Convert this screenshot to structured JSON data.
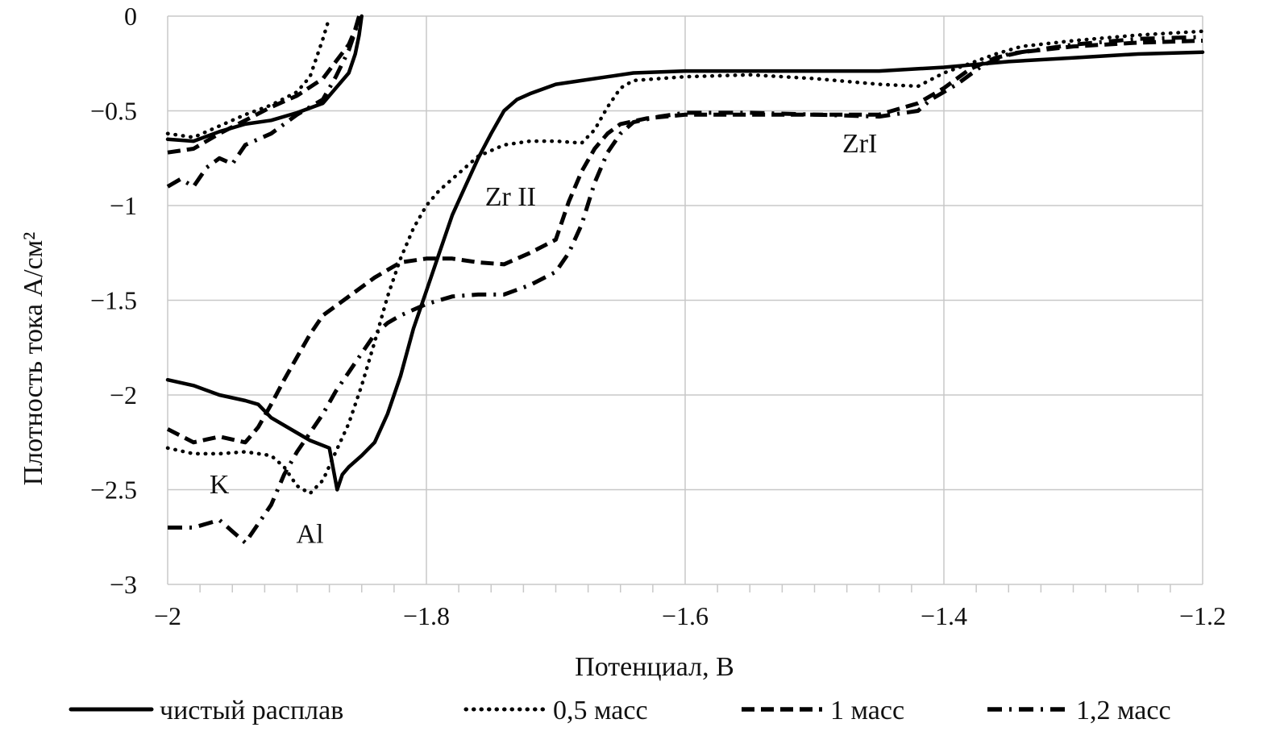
{
  "chart_data": {
    "type": "line",
    "title": "",
    "xlabel": "Потенциал, В",
    "ylabel": "Плотность тока А/см²",
    "xlim": [
      -2.0,
      -1.2
    ],
    "ylim": [
      -3,
      0
    ],
    "x_ticks": [
      -2.0,
      -1.8,
      -1.6,
      -1.4,
      -1.2
    ],
    "x_tick_labels": [
      "−2",
      "−1.8",
      "−1.6",
      "−1.4",
      "−1.2"
    ],
    "y_ticks": [
      0,
      -0.5,
      -1,
      -1.5,
      -2,
      -2.5,
      -3
    ],
    "y_tick_labels": [
      "0",
      "−0.5",
      "−1",
      "−1.5",
      "−2",
      "−2.5",
      "−3"
    ],
    "grid": true,
    "legend_position": "bottom",
    "annotations": [
      {
        "text": "K",
        "x": -1.96,
        "y": -2.52
      },
      {
        "text": "Al",
        "x": -1.89,
        "y": -2.78
      },
      {
        "text": "Zr II",
        "x": -1.735,
        "y": -1.0
      },
      {
        "text": "ZrI",
        "x": -1.465,
        "y": -0.72
      }
    ],
    "series": [
      {
        "name": "чистый расплав",
        "style": "solid",
        "segments": [
          [
            [
              -2.0,
              -0.65
            ],
            [
              -1.98,
              -0.66
            ],
            [
              -1.96,
              -0.61
            ],
            [
              -1.94,
              -0.57
            ],
            [
              -1.92,
              -0.55
            ],
            [
              -1.9,
              -0.51
            ],
            [
              -1.88,
              -0.46
            ],
            [
              -1.87,
              -0.38
            ],
            [
              -1.86,
              -0.3
            ],
            [
              -1.855,
              -0.2
            ],
            [
              -1.852,
              -0.1
            ],
            [
              -1.85,
              0.0
            ]
          ],
          [
            [
              -2.0,
              -1.92
            ],
            [
              -1.98,
              -1.95
            ],
            [
              -1.96,
              -2.0
            ],
            [
              -1.94,
              -2.03
            ],
            [
              -1.93,
              -2.05
            ],
            [
              -1.92,
              -2.12
            ],
            [
              -1.9,
              -2.2
            ],
            [
              -1.89,
              -2.24
            ],
            [
              -1.875,
              -2.28
            ],
            [
              -1.869,
              -2.5
            ],
            [
              -1.865,
              -2.42
            ],
            [
              -1.86,
              -2.38
            ],
            [
              -1.85,
              -2.32
            ],
            [
              -1.84,
              -2.25
            ],
            [
              -1.83,
              -2.1
            ],
            [
              -1.82,
              -1.9
            ],
            [
              -1.81,
              -1.65
            ],
            [
              -1.8,
              -1.45
            ],
            [
              -1.79,
              -1.25
            ],
            [
              -1.78,
              -1.05
            ],
            [
              -1.77,
              -0.9
            ],
            [
              -1.76,
              -0.75
            ],
            [
              -1.75,
              -0.62
            ],
            [
              -1.74,
              -0.5
            ],
            [
              -1.73,
              -0.44
            ],
            [
              -1.72,
              -0.41
            ],
            [
              -1.7,
              -0.36
            ],
            [
              -1.68,
              -0.34
            ],
            [
              -1.66,
              -0.32
            ],
            [
              -1.64,
              -0.3
            ],
            [
              -1.6,
              -0.29
            ],
            [
              -1.55,
              -0.29
            ],
            [
              -1.5,
              -0.29
            ],
            [
              -1.45,
              -0.29
            ],
            [
              -1.4,
              -0.27
            ],
            [
              -1.35,
              -0.24
            ],
            [
              -1.3,
              -0.22
            ],
            [
              -1.25,
              -0.2
            ],
            [
              -1.2,
              -0.19
            ]
          ]
        ]
      },
      {
        "name": "0,5 масс",
        "style": "dotted",
        "segments": [
          [
            [
              -2.0,
              -0.62
            ],
            [
              -1.98,
              -0.64
            ],
            [
              -1.96,
              -0.58
            ],
            [
              -1.94,
              -0.52
            ],
            [
              -1.92,
              -0.47
            ],
            [
              -1.9,
              -0.4
            ],
            [
              -1.89,
              -0.32
            ],
            [
              -1.885,
              -0.22
            ],
            [
              -1.88,
              -0.12
            ],
            [
              -1.876,
              -0.03
            ]
          ],
          [
            [
              -2.0,
              -2.28
            ],
            [
              -1.98,
              -2.31
            ],
            [
              -1.96,
              -2.31
            ],
            [
              -1.94,
              -2.3
            ],
            [
              -1.92,
              -2.32
            ],
            [
              -1.91,
              -2.38
            ],
            [
              -1.9,
              -2.48
            ],
            [
              -1.89,
              -2.52
            ],
            [
              -1.88,
              -2.45
            ],
            [
              -1.87,
              -2.3
            ],
            [
              -1.86,
              -2.15
            ],
            [
              -1.85,
              -1.95
            ],
            [
              -1.84,
              -1.72
            ],
            [
              -1.83,
              -1.48
            ],
            [
              -1.82,
              -1.28
            ],
            [
              -1.81,
              -1.12
            ],
            [
              -1.8,
              -1.0
            ],
            [
              -1.79,
              -0.92
            ],
            [
              -1.78,
              -0.86
            ],
            [
              -1.77,
              -0.8
            ],
            [
              -1.76,
              -0.74
            ],
            [
              -1.74,
              -0.68
            ],
            [
              -1.72,
              -0.66
            ],
            [
              -1.7,
              -0.66
            ],
            [
              -1.68,
              -0.67
            ],
            [
              -1.67,
              -0.6
            ],
            [
              -1.66,
              -0.48
            ],
            [
              -1.65,
              -0.38
            ],
            [
              -1.64,
              -0.34
            ],
            [
              -1.62,
              -0.33
            ],
            [
              -1.6,
              -0.32
            ],
            [
              -1.55,
              -0.31
            ],
            [
              -1.5,
              -0.33
            ],
            [
              -1.45,
              -0.36
            ],
            [
              -1.42,
              -0.37
            ],
            [
              -1.4,
              -0.3
            ],
            [
              -1.38,
              -0.25
            ],
            [
              -1.36,
              -0.2
            ],
            [
              -1.34,
              -0.16
            ],
            [
              -1.3,
              -0.13
            ],
            [
              -1.25,
              -0.1
            ],
            [
              -1.2,
              -0.08
            ]
          ]
        ]
      },
      {
        "name": "1 масс",
        "style": "dashed",
        "segments": [
          [
            [
              -2.0,
              -0.72
            ],
            [
              -1.98,
              -0.7
            ],
            [
              -1.96,
              -0.62
            ],
            [
              -1.94,
              -0.55
            ],
            [
              -1.92,
              -0.48
            ],
            [
              -1.9,
              -0.42
            ],
            [
              -1.88,
              -0.33
            ],
            [
              -1.87,
              -0.24
            ],
            [
              -1.86,
              -0.15
            ],
            [
              -1.855,
              -0.07
            ],
            [
              -1.852,
              0.0
            ]
          ],
          [
            [
              -2.0,
              -2.18
            ],
            [
              -1.98,
              -2.25
            ],
            [
              -1.96,
              -2.22
            ],
            [
              -1.94,
              -2.25
            ],
            [
              -1.93,
              -2.17
            ],
            [
              -1.92,
              -2.05
            ],
            [
              -1.91,
              -1.92
            ],
            [
              -1.9,
              -1.8
            ],
            [
              -1.89,
              -1.68
            ],
            [
              -1.88,
              -1.58
            ],
            [
              -1.86,
              -1.48
            ],
            [
              -1.84,
              -1.38
            ],
            [
              -1.82,
              -1.3
            ],
            [
              -1.8,
              -1.28
            ],
            [
              -1.78,
              -1.28
            ],
            [
              -1.76,
              -1.3
            ],
            [
              -1.74,
              -1.31
            ],
            [
              -1.72,
              -1.25
            ],
            [
              -1.7,
              -1.18
            ],
            [
              -1.69,
              -0.98
            ],
            [
              -1.68,
              -0.82
            ],
            [
              -1.67,
              -0.7
            ],
            [
              -1.66,
              -0.62
            ],
            [
              -1.65,
              -0.57
            ],
            [
              -1.63,
              -0.54
            ],
            [
              -1.6,
              -0.52
            ],
            [
              -1.55,
              -0.52
            ],
            [
              -1.5,
              -0.52
            ],
            [
              -1.45,
              -0.52
            ],
            [
              -1.42,
              -0.46
            ],
            [
              -1.4,
              -0.38
            ],
            [
              -1.38,
              -0.28
            ],
            [
              -1.36,
              -0.22
            ],
            [
              -1.34,
              -0.19
            ],
            [
              -1.3,
              -0.16
            ],
            [
              -1.25,
              -0.14
            ],
            [
              -1.2,
              -0.13
            ]
          ]
        ]
      },
      {
        "name": "1,2 масс",
        "style": "dashdot",
        "segments": [
          [
            [
              -2.0,
              -0.9
            ],
            [
              -1.99,
              -0.86
            ],
            [
              -1.98,
              -0.9
            ],
            [
              -1.97,
              -0.8
            ],
            [
              -1.96,
              -0.75
            ],
            [
              -1.95,
              -0.78
            ],
            [
              -1.94,
              -0.68
            ],
            [
              -1.92,
              -0.62
            ],
            [
              -1.91,
              -0.57
            ],
            [
              -1.9,
              -0.52
            ],
            [
              -1.88,
              -0.44
            ],
            [
              -1.87,
              -0.32
            ],
            [
              -1.86,
              -0.18
            ],
            [
              -1.855,
              -0.08
            ],
            [
              -1.852,
              0.0
            ]
          ],
          [
            [
              -2.0,
              -2.7
            ],
            [
              -1.98,
              -2.7
            ],
            [
              -1.96,
              -2.66
            ],
            [
              -1.95,
              -2.72
            ],
            [
              -1.94,
              -2.78
            ],
            [
              -1.93,
              -2.68
            ],
            [
              -1.92,
              -2.58
            ],
            [
              -1.91,
              -2.42
            ],
            [
              -1.9,
              -2.3
            ],
            [
              -1.89,
              -2.2
            ],
            [
              -1.88,
              -2.1
            ],
            [
              -1.87,
              -1.98
            ],
            [
              -1.86,
              -1.88
            ],
            [
              -1.85,
              -1.78
            ],
            [
              -1.84,
              -1.68
            ],
            [
              -1.83,
              -1.62
            ],
            [
              -1.82,
              -1.58
            ],
            [
              -1.8,
              -1.52
            ],
            [
              -1.78,
              -1.48
            ],
            [
              -1.76,
              -1.47
            ],
            [
              -1.74,
              -1.47
            ],
            [
              -1.72,
              -1.42
            ],
            [
              -1.7,
              -1.35
            ],
            [
              -1.69,
              -1.25
            ],
            [
              -1.68,
              -1.1
            ],
            [
              -1.67,
              -0.88
            ],
            [
              -1.66,
              -0.72
            ],
            [
              -1.65,
              -0.62
            ],
            [
              -1.64,
              -0.56
            ],
            [
              -1.62,
              -0.53
            ],
            [
              -1.6,
              -0.51
            ],
            [
              -1.55,
              -0.51
            ],
            [
              -1.5,
              -0.52
            ],
            [
              -1.45,
              -0.53
            ],
            [
              -1.42,
              -0.5
            ],
            [
              -1.41,
              -0.44
            ],
            [
              -1.39,
              -0.36
            ],
            [
              -1.37,
              -0.26
            ],
            [
              -1.35,
              -0.2
            ],
            [
              -1.3,
              -0.15
            ],
            [
              -1.25,
              -0.12
            ],
            [
              -1.2,
              -0.11
            ]
          ]
        ]
      }
    ]
  }
}
